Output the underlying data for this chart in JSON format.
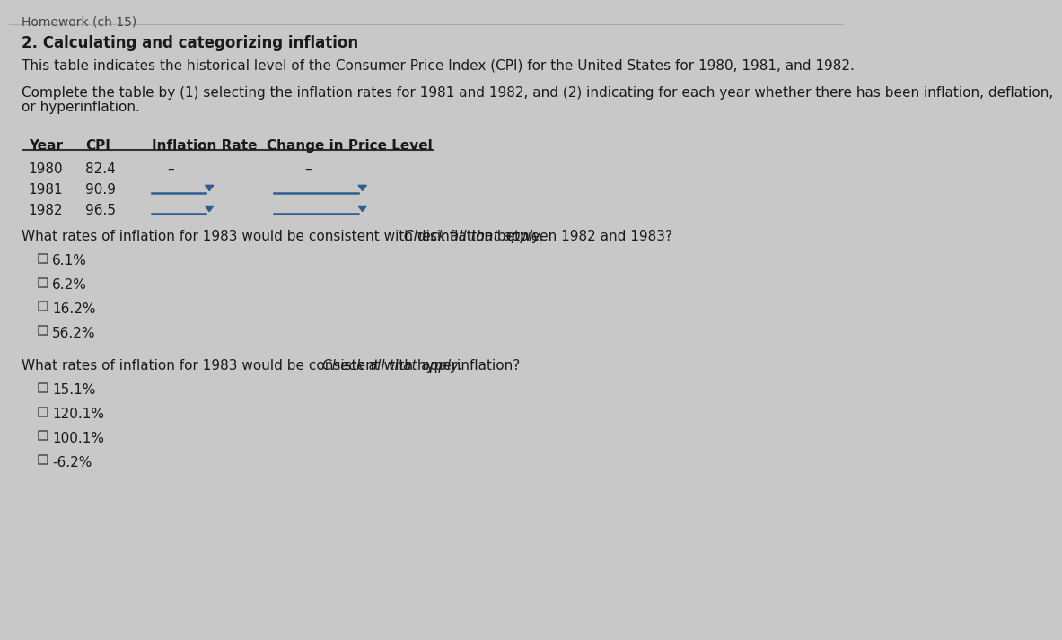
{
  "title": "2. Calculating and categorizing inflation",
  "intro_text": "This table indicates the historical level of the Consumer Price Index (CPI) for the United States for 1980, 1981, and 1982.",
  "complete_text_line1": "Complete the table by (1) selecting the inflation rates for 1981 and 1982, and (2) indicating for each year whether there has been inflation, deflation,",
  "complete_text_line2": "or hyperinflation.",
  "table_headers": [
    "Year",
    "CPI",
    "Inflation Rate",
    "Change in Price Level"
  ],
  "table_data": [
    [
      "1980",
      "82.4",
      "–",
      "–"
    ],
    [
      "1981",
      "90.9",
      "",
      ""
    ],
    [
      "1982",
      "96.5",
      "",
      ""
    ]
  ],
  "disinflation_question": "What rates of inflation for 1983 would be consistent with disinflation between 1982 and 1983?",
  "disinflation_italic": "Check all that apply.",
  "disinflation_options": [
    "6.1%",
    "6.2%",
    "16.2%",
    "56.2%"
  ],
  "hyperinflation_question": "What rates of inflation for 1983 would be consistent with hyperinflation?",
  "hyperinflation_italic": "Check all that apply.",
  "hyperinflation_options": [
    "15.1%",
    "120.1%",
    "100.1%",
    "-6.2%"
  ],
  "bg_color": "#c8c8c8",
  "white_color": "#ffffff",
  "text_color": "#1a1a1a",
  "blue_color": "#2e5d8e",
  "header_top_text": "Homework (ch 15)",
  "line_color": "#4a7ab5"
}
